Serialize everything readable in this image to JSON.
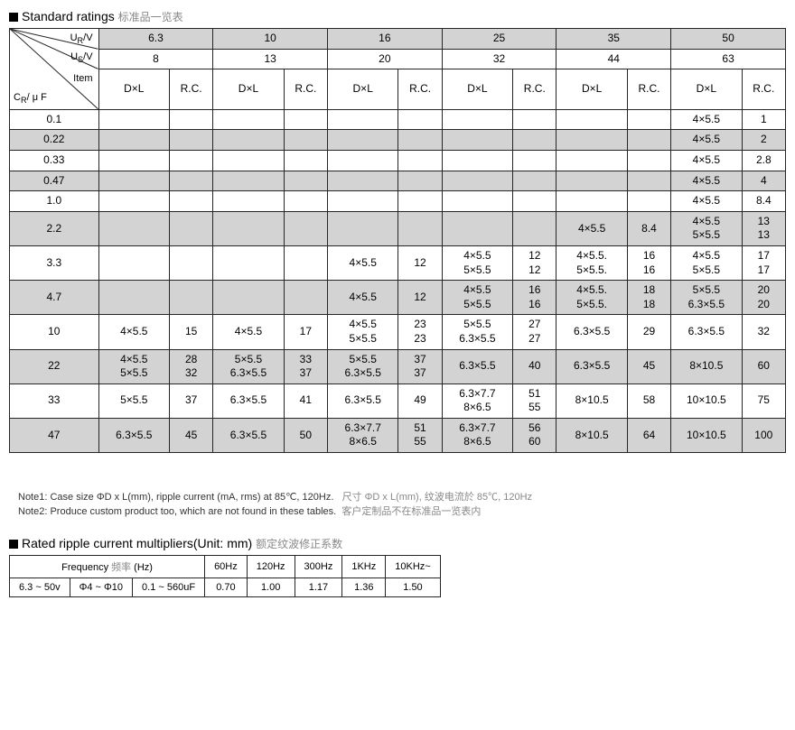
{
  "title_en": "Standard ratings",
  "title_cn": "标准品一览表",
  "header": {
    "ur": "U",
    "ur_sub": "R",
    "us": "U",
    "us_sub": "S",
    "v": "/V",
    "item": "Item",
    "cr": "C",
    "cr_sub": "R",
    "uf": "/ μ F",
    "dl": "D×L",
    "rc": "R.C."
  },
  "ur_vals": [
    "6.3",
    "10",
    "16",
    "25",
    "35",
    "50"
  ],
  "us_vals": [
    "8",
    "13",
    "20",
    "32",
    "44",
    "63"
  ],
  "rows": [
    {
      "c": "0.1",
      "shade": false,
      "cells": [
        "",
        "",
        "",
        "",
        "",
        "",
        "",
        "",
        "",
        "",
        "4×5.5",
        "1"
      ]
    },
    {
      "c": "0.22",
      "shade": true,
      "cells": [
        "",
        "",
        "",
        "",
        "",
        "",
        "",
        "",
        "",
        "",
        "4×5.5",
        "2"
      ]
    },
    {
      "c": "0.33",
      "shade": false,
      "cells": [
        "",
        "",
        "",
        "",
        "",
        "",
        "",
        "",
        "",
        "",
        "4×5.5",
        "2.8"
      ]
    },
    {
      "c": "0.47",
      "shade": true,
      "cells": [
        "",
        "",
        "",
        "",
        "",
        "",
        "",
        "",
        "",
        "",
        "4×5.5",
        "4"
      ]
    },
    {
      "c": "1.0",
      "shade": false,
      "cells": [
        "",
        "",
        "",
        "",
        "",
        "",
        "",
        "",
        "",
        "",
        "4×5.5",
        "8.4"
      ]
    },
    {
      "c": "2.2",
      "shade": true,
      "cells": [
        "",
        "",
        "",
        "",
        "",
        "",
        "",
        "",
        "4×5.5",
        "8.4",
        "4×5.5\n5×5.5",
        "13\n13"
      ]
    },
    {
      "c": "3.3",
      "shade": false,
      "cells": [
        "",
        "",
        "",
        "",
        "4×5.5",
        "12",
        "4×5.5\n5×5.5",
        "12\n12",
        "4×5.5.\n5×5.5.",
        "16\n16",
        "4×5.5\n5×5.5",
        "17\n17"
      ]
    },
    {
      "c": "4.7",
      "shade": true,
      "cells": [
        "",
        "",
        "",
        "",
        "4×5.5",
        "12",
        "4×5.5\n5×5.5",
        "16\n16",
        "4×5.5.\n5×5.5.",
        "18\n18",
        "5×5.5\n6.3×5.5",
        "20\n20"
      ]
    },
    {
      "c": "10",
      "shade": false,
      "cells": [
        "4×5.5",
        "15",
        "4×5.5",
        "17",
        "4×5.5\n5×5.5",
        "23\n23",
        "5×5.5\n6.3×5.5",
        "27\n27",
        "6.3×5.5",
        "29",
        "6.3×5.5",
        "32"
      ]
    },
    {
      "c": "22",
      "shade": true,
      "cells": [
        "4×5.5\n5×5.5",
        "28\n32",
        "5×5.5\n6.3×5.5",
        "33\n37",
        "5×5.5\n6.3×5.5",
        "37\n37",
        "6.3×5.5",
        "40",
        "6.3×5.5",
        "45",
        "8×10.5",
        "60"
      ]
    },
    {
      "c": "33",
      "shade": false,
      "cells": [
        "5×5.5",
        "37",
        "6.3×5.5",
        "41",
        "6.3×5.5",
        "49",
        "6.3×7.7\n8×6.5",
        "51\n55",
        "8×10.5",
        "58",
        "10×10.5",
        "75"
      ]
    },
    {
      "c": "47",
      "shade": true,
      "cells": [
        "6.3×5.5",
        "45",
        "6.3×5.5",
        "50",
        "6.3×7.7\n8×6.5",
        "51\n55",
        "6.3×7.7\n8×6.5",
        "56\n60",
        "8×10.5",
        "64",
        "10×10.5",
        "100"
      ]
    }
  ],
  "note1_en": "Note1: Case size ΦD x L(mm), ripple current (mA, rms) at 85℃, 120Hz.",
  "note1_cn": "尺寸 ΦD x L(mm),  纹波电流於 85℃, 120Hz",
  "note2_en": "Note2: Produce custom product too, which are not found in these tables.",
  "note2_cn": "客户定制品不在标准品一览表内",
  "ripple_title_en": "Rated ripple current multipliers(Unit: mm)",
  "ripple_title_cn": "额定纹波修正系数",
  "ripple": {
    "freq_label_en": "Frequency",
    "freq_label_cn": "频率",
    "hz": "(Hz)",
    "cols": [
      "60Hz",
      "120Hz",
      "300Hz",
      "1KHz",
      "10KHz~"
    ],
    "range_v": "6.3 ~ 50v",
    "range_d": "Φ4 ~ Φ10",
    "range_c": "0.1 ~ 560uF",
    "vals": [
      "0.70",
      "1.00",
      "1.17",
      "1.36",
      "1.50"
    ]
  },
  "colors": {
    "border": "#252525",
    "shade": "#d3d3d3",
    "cn_text": "#888888"
  }
}
